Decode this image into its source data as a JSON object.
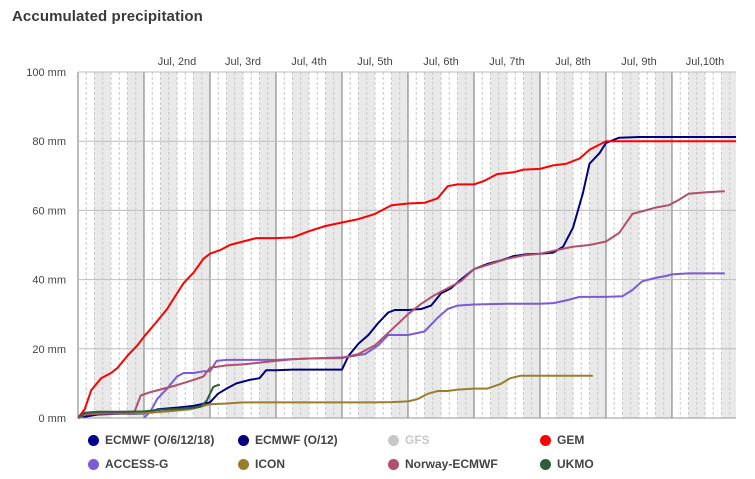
{
  "chart_data": {
    "type": "line",
    "title": "Accumulated precipitation",
    "xlabel": "",
    "ylabel": "",
    "x_tick_labels": [
      "Jul, 2nd",
      "Jul, 3rd",
      "Jul, 4th",
      "Jul, 5th",
      "Jul, 6th",
      "Jul, 7th",
      "Jul, 8th",
      "Jul, 9th",
      "Jul,10th"
    ],
    "x_range_days": [
      1.0,
      10.97
    ],
    "y_tick_labels": [
      "0 mm",
      "20 mm",
      "40 mm",
      "60 mm",
      "80 mm",
      "100 mm"
    ],
    "ylim": [
      0,
      100
    ],
    "grid": true,
    "legend_placement": "bottom",
    "series": [
      {
        "name": "ECMWF (O/6/12/18)",
        "color": "#00008b",
        "visible": true,
        "points": []
      },
      {
        "name": "ECMWF (O/12)",
        "color": "#000080",
        "visible": true,
        "points": [
          [
            1.0,
            0
          ],
          [
            1.3,
            1
          ],
          [
            1.6,
            1.2
          ],
          [
            2.0,
            1.3
          ],
          [
            2.2,
            2.5
          ],
          [
            2.5,
            3
          ],
          [
            2.75,
            3.5
          ],
          [
            3.0,
            4.5
          ],
          [
            3.12,
            7
          ],
          [
            3.25,
            8.5
          ],
          [
            3.4,
            10
          ],
          [
            3.6,
            11
          ],
          [
            3.75,
            11.5
          ],
          [
            3.85,
            13.8
          ],
          [
            4.0,
            13.8
          ],
          [
            4.25,
            14
          ],
          [
            4.5,
            14
          ],
          [
            4.75,
            14
          ],
          [
            5.0,
            14
          ],
          [
            5.1,
            18
          ],
          [
            5.25,
            21.5
          ],
          [
            5.4,
            24
          ],
          [
            5.55,
            27.5
          ],
          [
            5.7,
            30.5
          ],
          [
            5.8,
            31.2
          ],
          [
            6.0,
            31.2
          ],
          [
            6.2,
            31.5
          ],
          [
            6.35,
            32.5
          ],
          [
            6.5,
            36
          ],
          [
            6.65,
            37.5
          ],
          [
            6.8,
            40
          ],
          [
            7.0,
            43
          ],
          [
            7.2,
            44.5
          ],
          [
            7.4,
            45.5
          ],
          [
            7.6,
            46.8
          ],
          [
            7.8,
            47.3
          ],
          [
            8.0,
            47.5
          ],
          [
            8.2,
            47.8
          ],
          [
            8.35,
            49.5
          ],
          [
            8.5,
            55
          ],
          [
            8.65,
            65
          ],
          [
            8.75,
            73.5
          ],
          [
            8.9,
            76.5
          ],
          [
            9.0,
            79.5
          ],
          [
            9.2,
            81
          ],
          [
            9.5,
            81.2
          ],
          [
            10.0,
            81.2
          ],
          [
            10.5,
            81.2
          ],
          [
            10.97,
            81.2
          ]
        ]
      },
      {
        "name": "GFS",
        "color": "#c8c8c8",
        "visible": false,
        "points": []
      },
      {
        "name": "GEM",
        "color": "#ff0000",
        "visible": true,
        "points": [
          [
            1.0,
            0
          ],
          [
            1.1,
            2.5
          ],
          [
            1.2,
            8
          ],
          [
            1.35,
            11.5
          ],
          [
            1.5,
            13
          ],
          [
            1.6,
            14.5
          ],
          [
            1.75,
            18
          ],
          [
            1.9,
            21
          ],
          [
            2.0,
            23.5
          ],
          [
            2.2,
            28
          ],
          [
            2.35,
            31.5
          ],
          [
            2.5,
            36
          ],
          [
            2.6,
            39
          ],
          [
            2.75,
            42
          ],
          [
            2.9,
            46
          ],
          [
            3.0,
            47.5
          ],
          [
            3.15,
            48.5
          ],
          [
            3.3,
            50
          ],
          [
            3.5,
            51
          ],
          [
            3.7,
            52
          ],
          [
            4.0,
            52
          ],
          [
            4.25,
            52.2
          ],
          [
            4.5,
            54
          ],
          [
            4.75,
            55.5
          ],
          [
            5.0,
            56.5
          ],
          [
            5.25,
            57.5
          ],
          [
            5.5,
            59
          ],
          [
            5.75,
            61.5
          ],
          [
            6.0,
            62
          ],
          [
            6.25,
            62.2
          ],
          [
            6.45,
            63.5
          ],
          [
            6.6,
            67
          ],
          [
            6.75,
            67.5
          ],
          [
            7.0,
            67.5
          ],
          [
            7.15,
            68.5
          ],
          [
            7.35,
            70.5
          ],
          [
            7.6,
            71
          ],
          [
            7.75,
            71.8
          ],
          [
            8.0,
            72
          ],
          [
            8.2,
            73
          ],
          [
            8.4,
            73.5
          ],
          [
            8.6,
            75
          ],
          [
            8.75,
            77.5
          ],
          [
            9.0,
            80
          ],
          [
            9.25,
            80
          ],
          [
            9.5,
            80
          ],
          [
            10.0,
            80
          ],
          [
            10.5,
            80
          ],
          [
            10.97,
            80
          ]
        ]
      },
      {
        "name": "ACCESS-G",
        "color": "#7b5cd6",
        "visible": true,
        "points": [
          [
            2.0,
            0
          ],
          [
            2.1,
            2
          ],
          [
            2.2,
            5.5
          ],
          [
            2.35,
            8.5
          ],
          [
            2.5,
            12
          ],
          [
            2.6,
            13
          ],
          [
            2.75,
            13
          ],
          [
            2.9,
            13.5
          ],
          [
            3.0,
            13.5
          ],
          [
            3.1,
            16.5
          ],
          [
            3.25,
            16.8
          ],
          [
            3.5,
            16.8
          ],
          [
            3.75,
            16.8
          ],
          [
            4.0,
            16.8
          ],
          [
            4.5,
            17.2
          ],
          [
            5.0,
            17.5
          ],
          [
            5.2,
            18
          ],
          [
            5.35,
            18.5
          ],
          [
            5.55,
            21
          ],
          [
            5.7,
            24
          ],
          [
            6.0,
            24
          ],
          [
            6.25,
            25
          ],
          [
            6.45,
            29
          ],
          [
            6.6,
            31.5
          ],
          [
            6.75,
            32.5
          ],
          [
            7.0,
            32.8
          ],
          [
            7.5,
            33
          ],
          [
            8.0,
            33
          ],
          [
            8.2,
            33.2
          ],
          [
            8.4,
            34
          ],
          [
            8.6,
            35
          ],
          [
            9.0,
            35
          ],
          [
            9.25,
            35.2
          ],
          [
            9.4,
            37
          ],
          [
            9.55,
            39.5
          ],
          [
            9.75,
            40.5
          ],
          [
            9.9,
            41
          ],
          [
            10.0,
            41.5
          ],
          [
            10.25,
            41.8
          ],
          [
            10.5,
            41.8
          ],
          [
            10.8,
            41.8
          ]
        ]
      },
      {
        "name": "ICON",
        "color": "#9b7d2e",
        "visible": true,
        "points": [
          [
            1.0,
            0
          ],
          [
            1.1,
            1
          ],
          [
            1.3,
            1.2
          ],
          [
            1.6,
            1.3
          ],
          [
            2.0,
            1.4
          ],
          [
            2.4,
            2
          ],
          [
            2.7,
            2.5
          ],
          [
            2.9,
            3.5
          ],
          [
            3.0,
            4
          ],
          [
            3.25,
            4.2
          ],
          [
            3.5,
            4.5
          ],
          [
            4.0,
            4.5
          ],
          [
            4.5,
            4.5
          ],
          [
            5.0,
            4.5
          ],
          [
            5.5,
            4.5
          ],
          [
            5.75,
            4.6
          ],
          [
            6.0,
            4.8
          ],
          [
            6.15,
            5.5
          ],
          [
            6.3,
            7
          ],
          [
            6.45,
            7.8
          ],
          [
            6.6,
            7.8
          ],
          [
            6.75,
            8.2
          ],
          [
            7.0,
            8.5
          ],
          [
            7.2,
            8.5
          ],
          [
            7.4,
            9.8
          ],
          [
            7.55,
            11.5
          ],
          [
            7.7,
            12.2
          ],
          [
            8.0,
            12.2
          ],
          [
            8.25,
            12.2
          ],
          [
            8.5,
            12.2
          ],
          [
            8.8,
            12.2
          ]
        ]
      },
      {
        "name": "Norway-ECMWF",
        "color": "#b0506a",
        "visible": true,
        "points": [
          [
            1.0,
            0
          ],
          [
            1.1,
            1
          ],
          [
            1.3,
            1.3
          ],
          [
            1.6,
            1.4
          ],
          [
            1.85,
            1.5
          ],
          [
            1.95,
            6.5
          ],
          [
            2.1,
            7.5
          ],
          [
            2.3,
            8.5
          ],
          [
            2.5,
            9.5
          ],
          [
            2.75,
            11
          ],
          [
            2.9,
            12
          ],
          [
            3.0,
            14.5
          ],
          [
            3.25,
            15.2
          ],
          [
            3.5,
            15.5
          ],
          [
            3.75,
            16
          ],
          [
            4.0,
            16.5
          ],
          [
            4.25,
            17
          ],
          [
            4.5,
            17.2
          ],
          [
            5.0,
            17.3
          ],
          [
            5.25,
            18.5
          ],
          [
            5.5,
            21
          ],
          [
            5.75,
            25.5
          ],
          [
            6.0,
            30
          ],
          [
            6.2,
            33
          ],
          [
            6.4,
            35.5
          ],
          [
            6.6,
            37.5
          ],
          [
            6.8,
            39.5
          ],
          [
            7.0,
            43
          ],
          [
            7.25,
            44.5
          ],
          [
            7.5,
            46
          ],
          [
            7.75,
            47
          ],
          [
            8.0,
            47.5
          ],
          [
            8.25,
            48.5
          ],
          [
            8.5,
            49.5
          ],
          [
            8.75,
            50
          ],
          [
            9.0,
            51
          ],
          [
            9.2,
            53.5
          ],
          [
            9.4,
            59
          ],
          [
            9.6,
            60
          ],
          [
            9.75,
            60.8
          ],
          [
            9.95,
            61.5
          ],
          [
            10.1,
            63
          ],
          [
            10.25,
            64.8
          ],
          [
            10.5,
            65.2
          ],
          [
            10.75,
            65.5
          ],
          [
            10.8,
            65.5
          ]
        ]
      },
      {
        "name": "UKMO",
        "color": "#2e5e3e",
        "visible": true,
        "points": [
          [
            1.0,
            0
          ],
          [
            1.1,
            1.5
          ],
          [
            1.3,
            1.8
          ],
          [
            1.6,
            1.8
          ],
          [
            2.0,
            1.9
          ],
          [
            2.25,
            2.4
          ],
          [
            2.5,
            2.6
          ],
          [
            2.75,
            3
          ],
          [
            2.85,
            3.2
          ],
          [
            2.95,
            5
          ],
          [
            3.05,
            9
          ],
          [
            3.12,
            9.5
          ],
          [
            3.15,
            9.5
          ]
        ]
      }
    ]
  }
}
